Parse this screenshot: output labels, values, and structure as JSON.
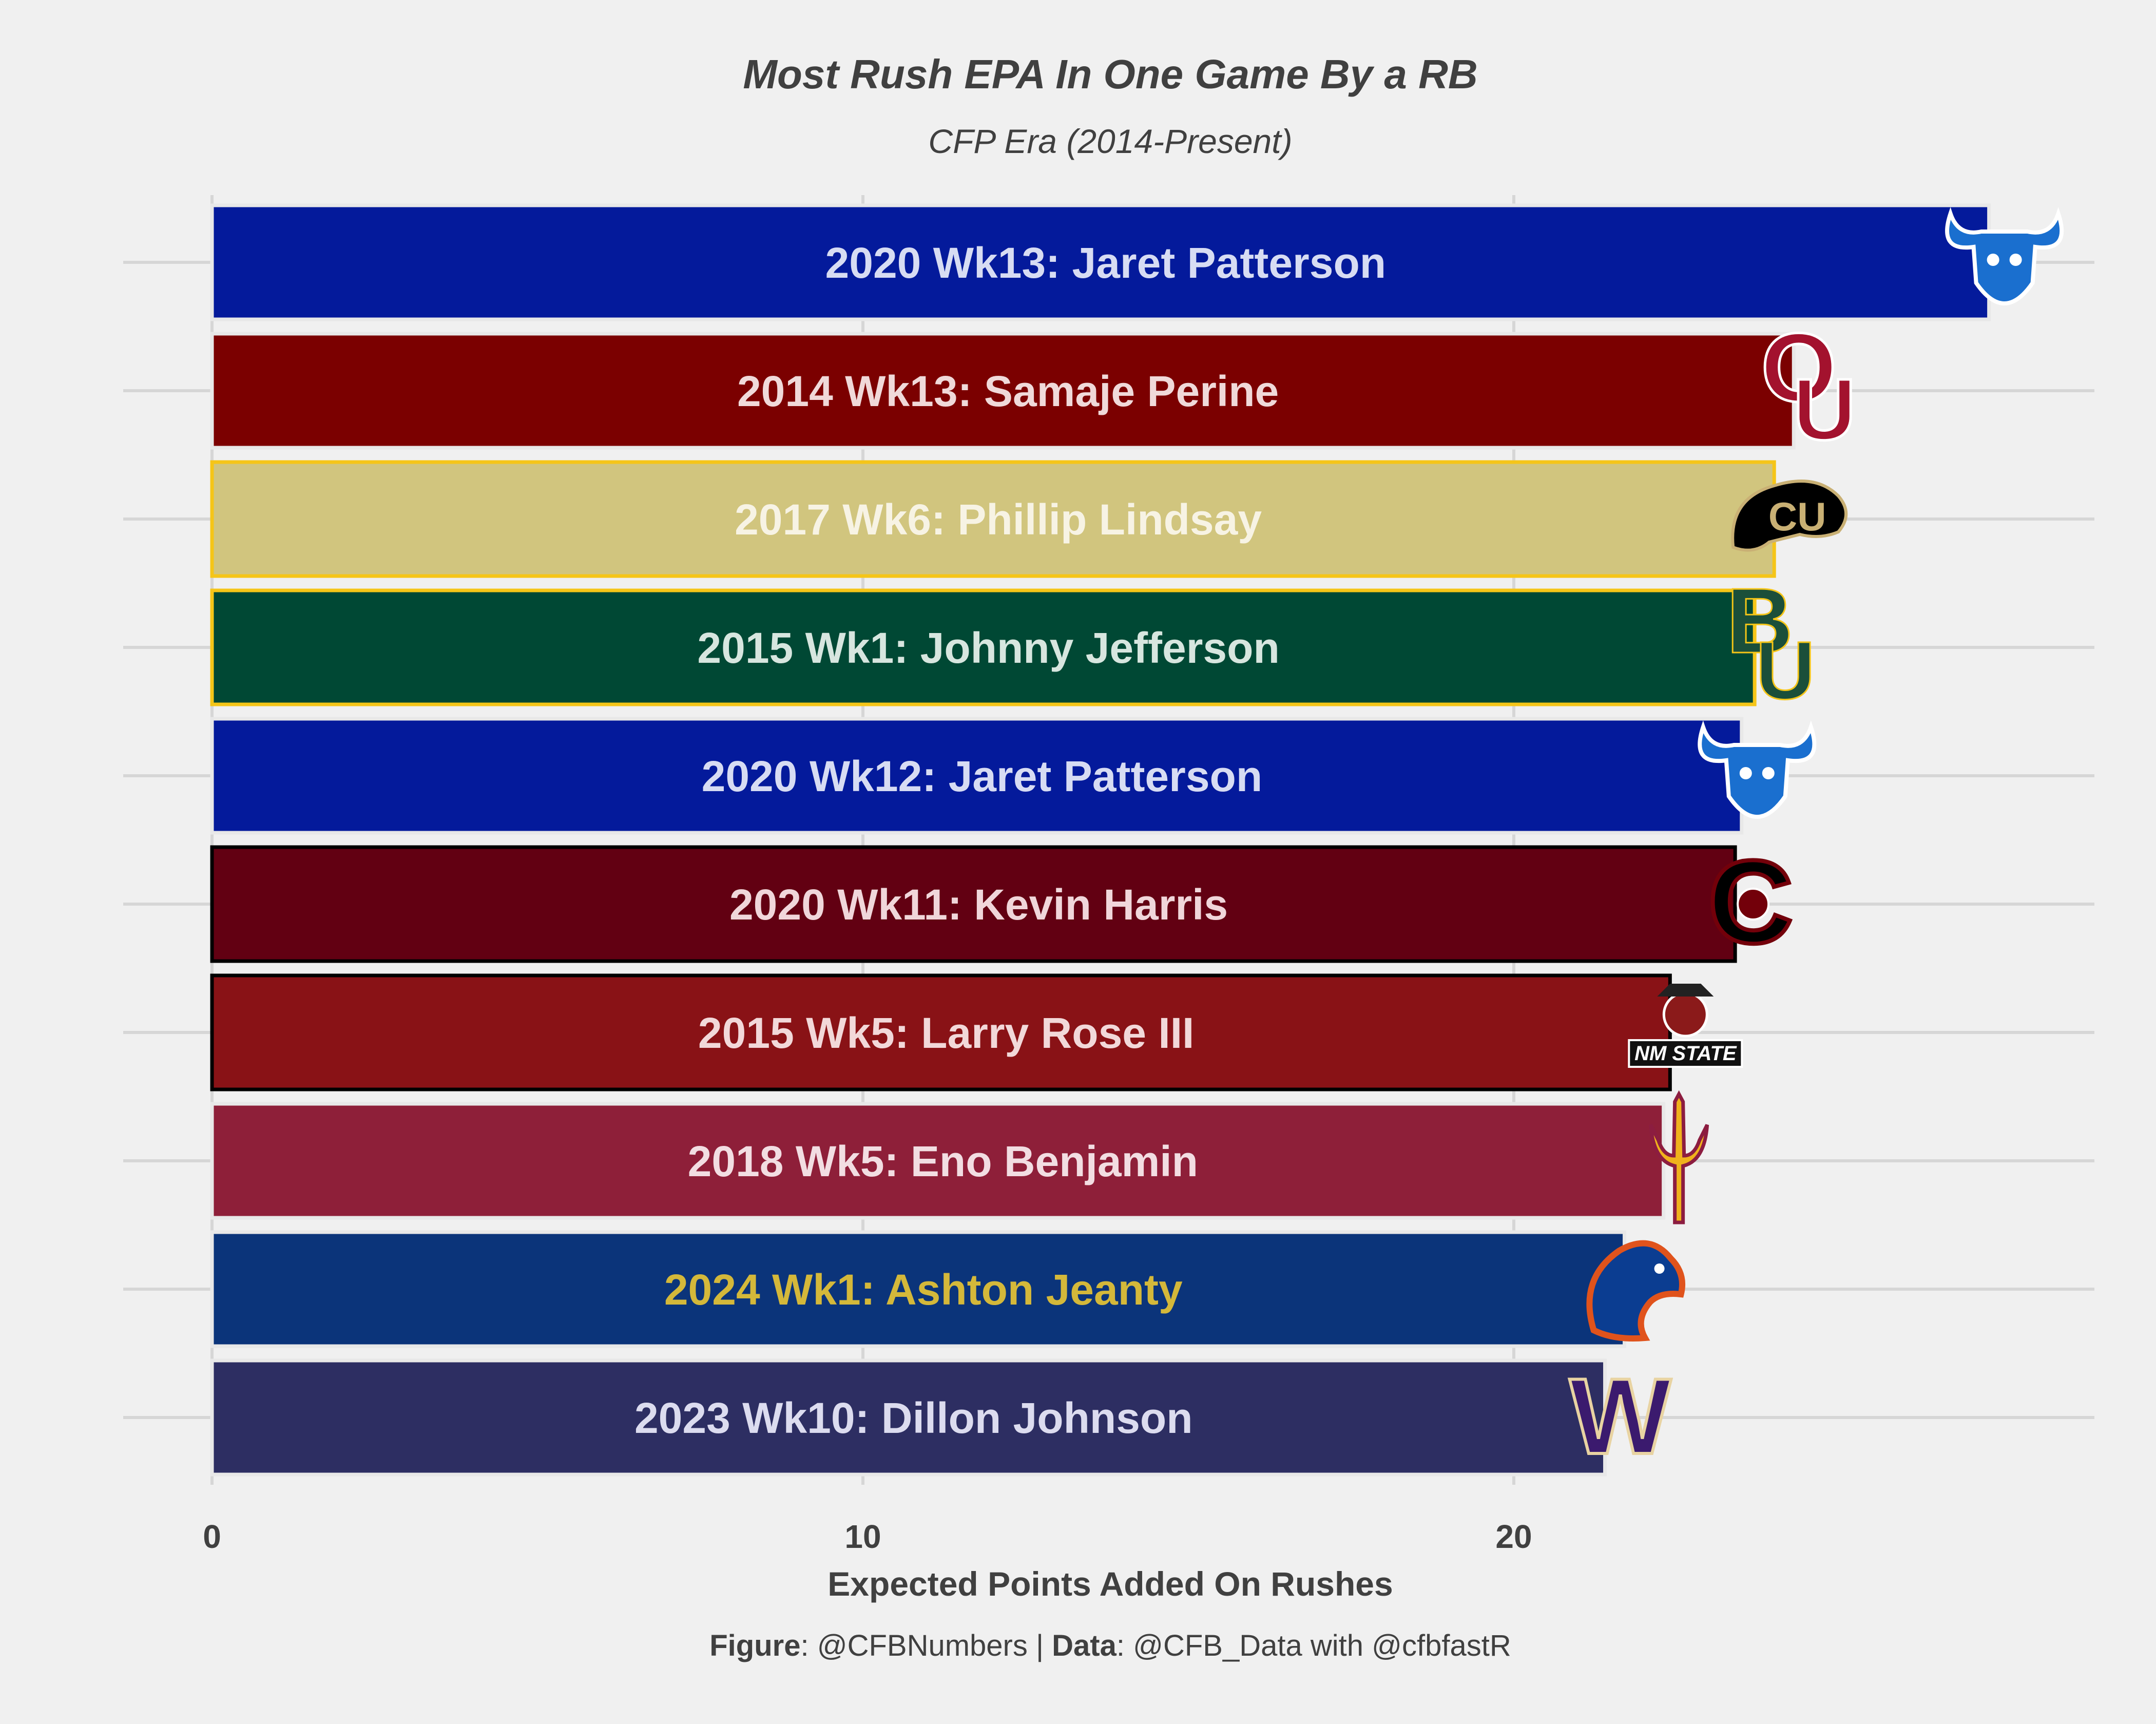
{
  "chart_data": {
    "type": "bar",
    "orientation": "horizontal",
    "title": "Most Rush EPA In One Game By a RB",
    "subtitle": "CFP Era (2014-Present)",
    "xlabel": "Expected Points Added On Rushes",
    "ylabel": "",
    "xlim": [
      0,
      28.9
    ],
    "xticks": [
      0,
      10,
      20
    ],
    "grid": true,
    "legend": "none",
    "caption": {
      "figure_label": "Figure",
      "figure_value": ": @CFBNumbers | ",
      "data_label": "Data",
      "data_value": ": @CFB_Data with @cfbfastR"
    },
    "bars": [
      {
        "label": "2020 Wk13: Jaret Patterson",
        "value": 27.3,
        "fill": "#041a9b",
        "stroke": "#e8e8e8",
        "text_color": "#d7dcf3",
        "icon": "buffalo-bulls-logo-icon",
        "icon_color": "#1a6fcf"
      },
      {
        "label": "2014 Wk13: Samaje Perine",
        "value": 24.3,
        "fill": "#7b0000",
        "stroke": "#e8e8e8",
        "text_color": "#f0d9d9",
        "icon": "oklahoma-logo-icon",
        "icon_color": "#a3122e"
      },
      {
        "label": "2017 Wk6: Phillip Lindsay",
        "value": 24.0,
        "fill": "#d1c57e",
        "stroke": "#f5c518",
        "text_color": "#f7f3e4",
        "icon": "colorado-buffaloes-logo-icon",
        "icon_color": "#000000"
      },
      {
        "label": "2015 Wk1: Johnny Jefferson",
        "value": 23.7,
        "fill": "#004834",
        "stroke": "#f5c518",
        "text_color": "#d7e6df",
        "icon": "baylor-logo-icon",
        "icon_color": "#1b4f3a"
      },
      {
        "label": "2020 Wk12: Jaret Patterson",
        "value": 23.5,
        "fill": "#041a9b",
        "stroke": "#e8e8e8",
        "text_color": "#d7dcf3",
        "icon": "buffalo-bulls-logo-icon",
        "icon_color": "#1a6fcf"
      },
      {
        "label": "2020 Wk11: Kevin Harris",
        "value": 23.4,
        "fill": "#620012",
        "stroke": "#000000",
        "text_color": "#f0d6da",
        "icon": "south-carolina-logo-icon",
        "icon_color": "#000000"
      },
      {
        "label": "2015 Wk5: Larry Rose III",
        "value": 22.4,
        "fill": "#891216",
        "stroke": "#000000",
        "text_color": "#f2d8d9",
        "icon": "nm-state-logo-icon",
        "icon_color": "#8b1a1a",
        "icon_text": "NM STATE"
      },
      {
        "label": "2018 Wk5: Eno Benjamin",
        "value": 22.3,
        "fill": "#8e1f39",
        "stroke": "#e8e8e8",
        "text_color": "#f2dde2",
        "icon": "arizona-state-pitchfork-icon",
        "icon_color": "#f0b21c"
      },
      {
        "label": "2024 Wk1: Ashton Jeanty",
        "value": 21.7,
        "fill": "#0b347a",
        "stroke": "#e8e8e8",
        "text_color": "#d4b83a",
        "icon": "boise-state-bronco-icon",
        "icon_color": "#e0531c"
      },
      {
        "label": "2023 Wk10: Dillon Johnson",
        "value": 21.4,
        "fill": "#2d2e62",
        "stroke": "#e8e8e8",
        "text_color": "#dcdcef",
        "icon": "washington-w-logo-icon",
        "icon_color": "#3b1a6e"
      }
    ]
  }
}
